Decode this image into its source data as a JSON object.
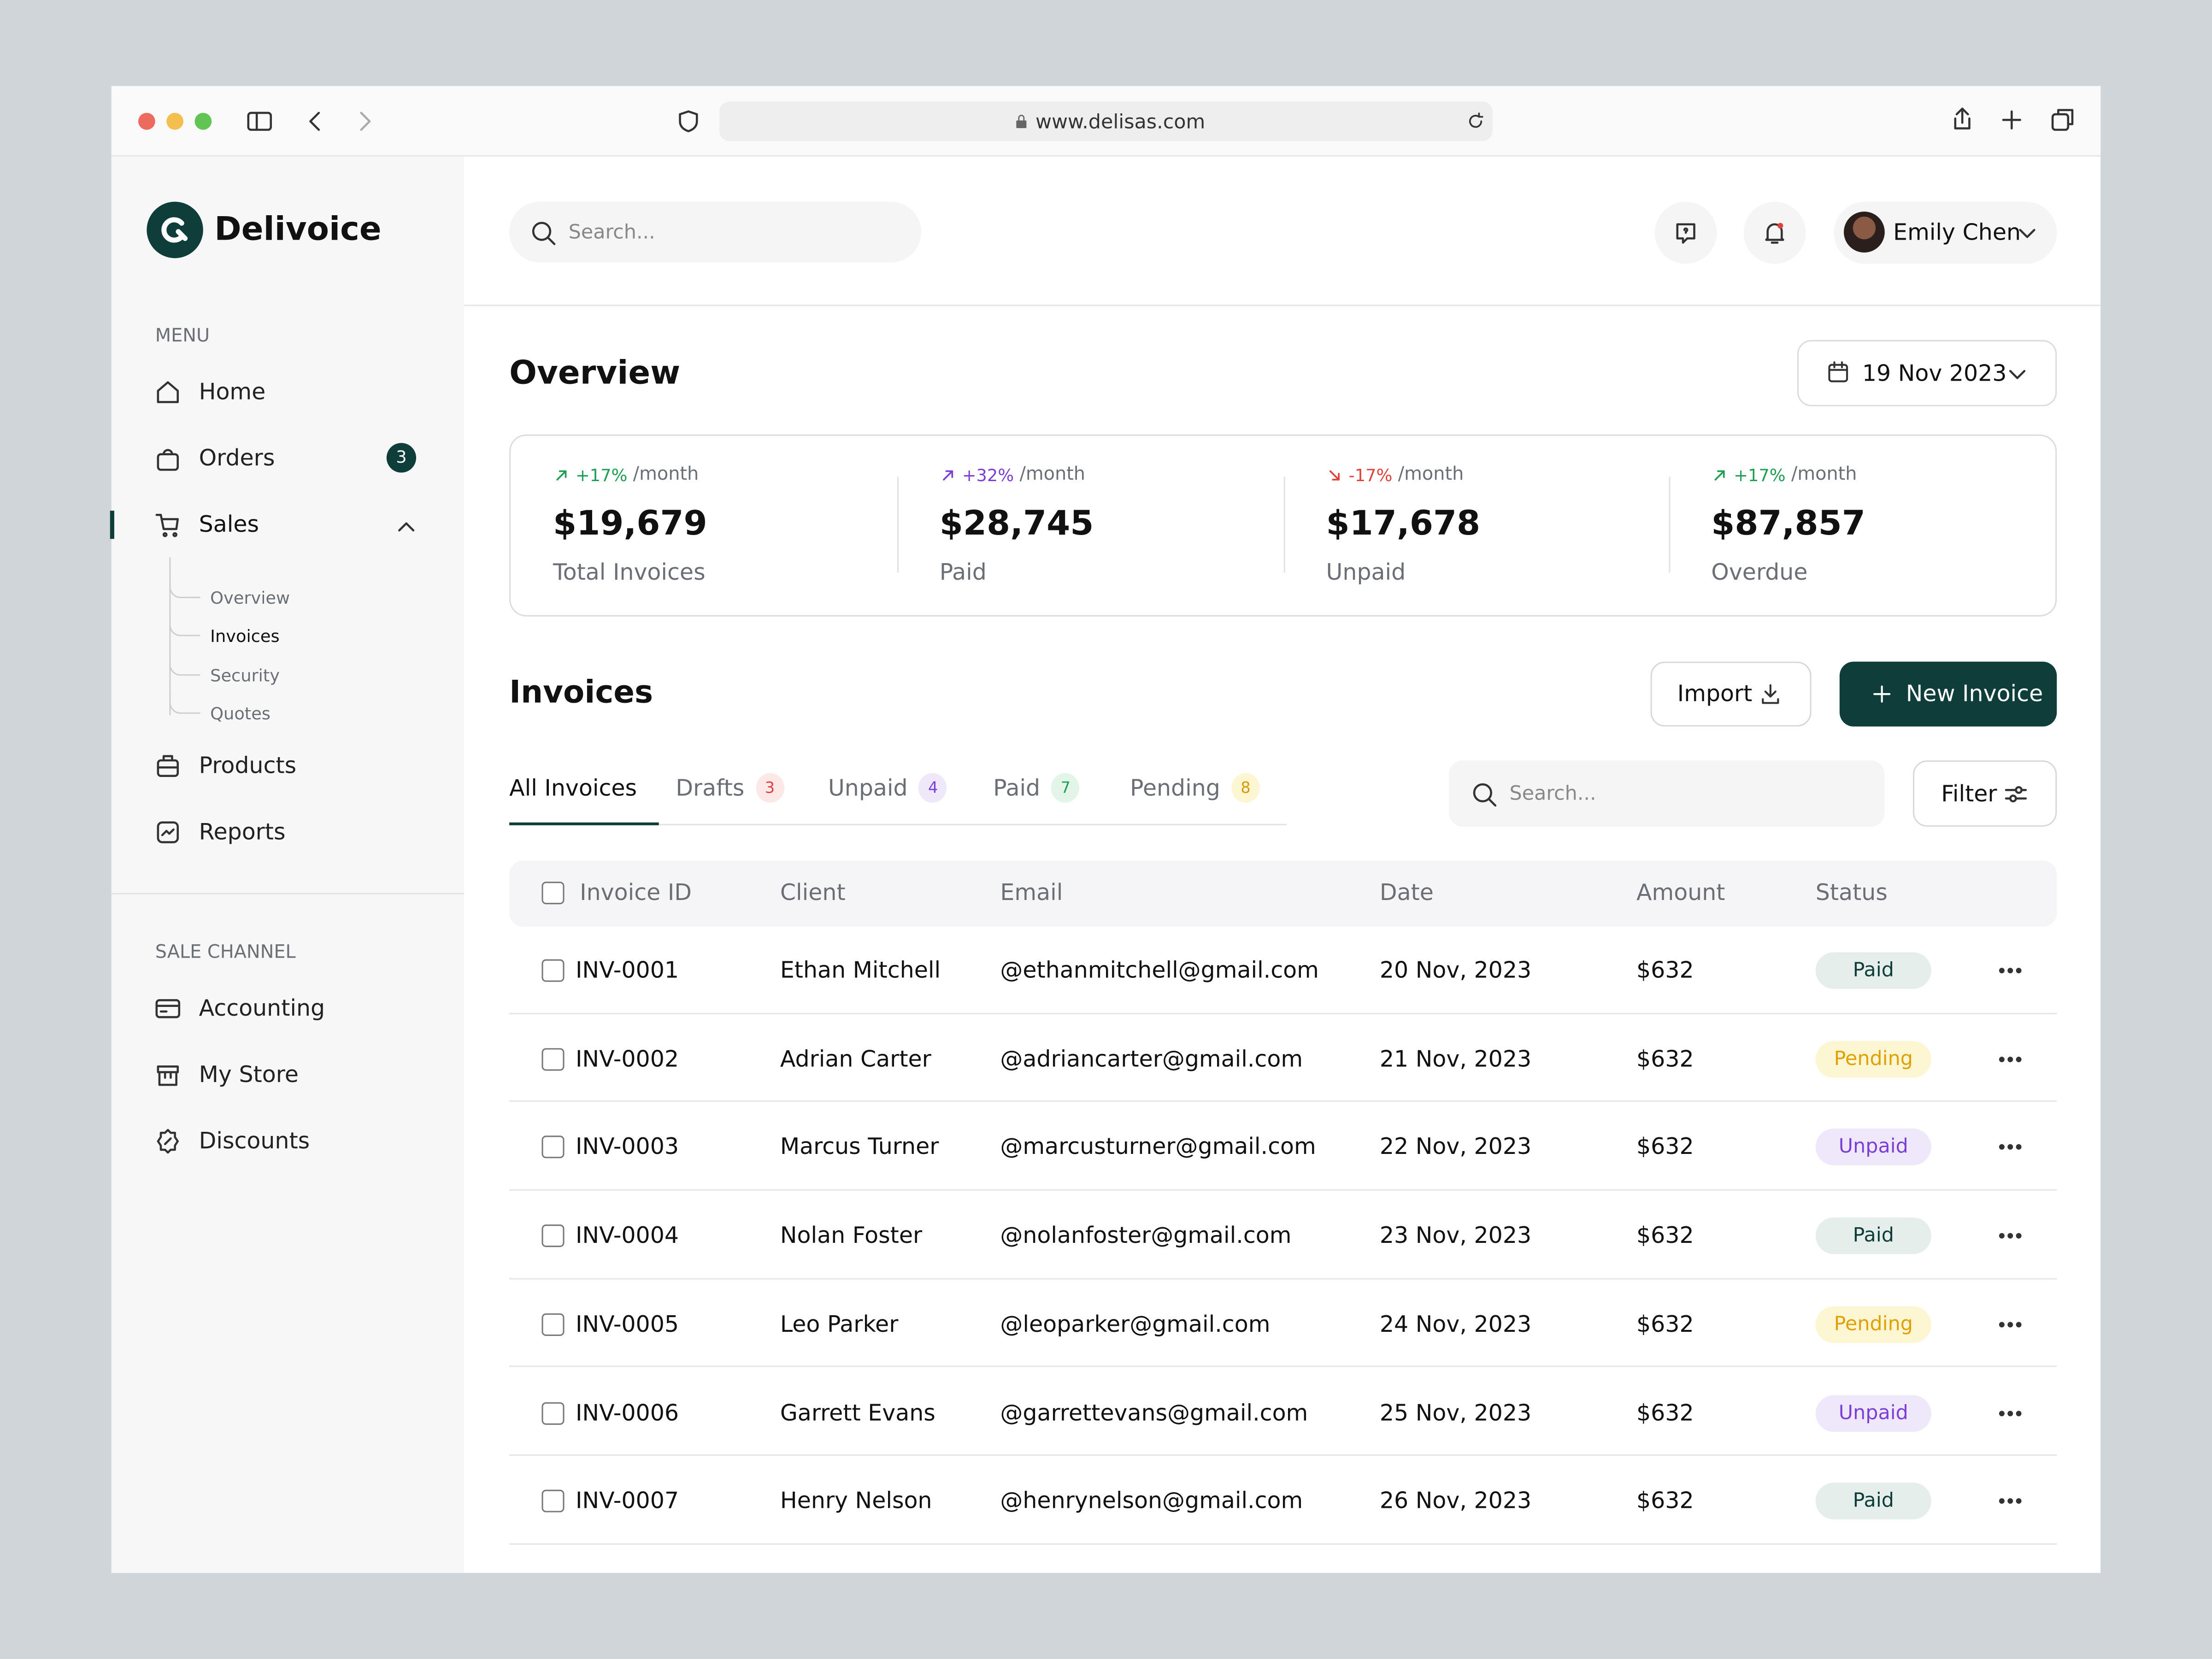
{
  "browser": {
    "url": "www.delisas.com"
  },
  "sidebar": {
    "brand": "Delivoice",
    "menu_label": "MENU",
    "menu": [
      {
        "label": "Home"
      },
      {
        "label": "Orders",
        "badge": 3
      },
      {
        "label": "Sales"
      },
      {
        "label": "Products"
      },
      {
        "label": "Reports"
      }
    ],
    "sales_subitems": [
      "Overview",
      "Invoices",
      "Security",
      "Quotes"
    ],
    "channel_label": "SALE CHANNEL",
    "channels": [
      "Accounting",
      "My Store",
      "Discounts"
    ]
  },
  "header": {
    "search_placeholder": "Search...",
    "user": "Emily Chen"
  },
  "overview": {
    "title": "Overview",
    "date": "19 Nov 2023",
    "stats": [
      {
        "change": "+17%",
        "period": "/month",
        "value": "$19,679",
        "label": "Total Invoices",
        "color": "#1f9d55"
      },
      {
        "change": "+32%",
        "period": "/month",
        "value": "$28,745",
        "label": "Paid",
        "color": "#7b3fd6"
      },
      {
        "change": "-17%",
        "period": "/month",
        "value": "$17,678",
        "label": "Unpaid",
        "color": "#e0413a"
      },
      {
        "change": "+17%",
        "period": "/month",
        "value": "$87,857",
        "label": "Overdue",
        "color": "#1f9d55"
      }
    ]
  },
  "invoices": {
    "title": "Invoices",
    "import": "Import",
    "new": "New Invoice",
    "tabs": [
      {
        "label": "All Invoices"
      },
      {
        "label": "Drafts",
        "count": 3,
        "colors": [
          "#e0413a",
          "#fde8e8"
        ]
      },
      {
        "label": "Unpaid",
        "count": 4,
        "colors": [
          "#7b3fd6",
          "#efe8fb"
        ]
      },
      {
        "label": "Paid",
        "count": 7,
        "colors": [
          "#1f9d55",
          "#e3f5e9"
        ]
      },
      {
        "label": "Pending",
        "count": 8,
        "colors": [
          "#d99a00",
          "#fdf6d3"
        ]
      }
    ],
    "search_placeholder": "Search...",
    "filter": "Filter",
    "columns": [
      "Invoice ID",
      "Client",
      "Email",
      "Date",
      "Amount",
      "Status"
    ],
    "rows": [
      {
        "id": "INV-0001",
        "client": "Ethan Mitchell",
        "email": "@ethanmitchell@gmail.com",
        "date": "20 Nov, 2023",
        "amount": "$632",
        "status": "Paid",
        "status_colors": [
          "#0f3d3a",
          "#e6eeec"
        ]
      },
      {
        "id": "INV-0002",
        "client": "Adrian Carter",
        "email": "@adriancarter@gmail.com",
        "date": "21 Nov, 2023",
        "amount": "$632",
        "status": "Pending",
        "status_colors": [
          "#e0a100",
          "#fdf6d3"
        ]
      },
      {
        "id": "INV-0003",
        "client": "Marcus Turner",
        "email": "@marcusturner@gmail.com",
        "date": "22 Nov, 2023",
        "amount": "$632",
        "status": "Unpaid",
        "status_colors": [
          "#7b3fd6",
          "#efe8fb"
        ]
      },
      {
        "id": "INV-0004",
        "client": "Nolan Foster",
        "email": "@nolanfoster@gmail.com",
        "date": "23 Nov, 2023",
        "amount": "$632",
        "status": "Paid",
        "status_colors": [
          "#0f3d3a",
          "#e6eeec"
        ]
      },
      {
        "id": "INV-0005",
        "client": "Leo Parker",
        "email": "@leoparker@gmail.com",
        "date": "24 Nov, 2023",
        "amount": "$632",
        "status": "Pending",
        "status_colors": [
          "#e0a100",
          "#fdf6d3"
        ]
      },
      {
        "id": "INV-0006",
        "client": "Garrett Evans",
        "email": "@garrettevans@gmail.com",
        "date": "25 Nov, 2023",
        "amount": "$632",
        "status": "Unpaid",
        "status_colors": [
          "#7b3fd6",
          "#efe8fb"
        ]
      },
      {
        "id": "INV-0007",
        "client": "Henry Nelson",
        "email": "@henrynelson@gmail.com",
        "date": "26 Nov, 2023",
        "amount": "$632",
        "status": "Paid",
        "status_colors": [
          "#0f3d3a",
          "#e6eeec"
        ]
      }
    ]
  }
}
